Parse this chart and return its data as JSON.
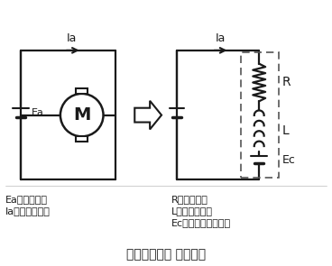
{
  "title": "有刷直流电机 等效电路",
  "bg_color": "#ffffff",
  "line_color": "#1a1a1a",
  "labels": {
    "Ia_left": "Ia",
    "Ia_right": "Ia",
    "R": "R",
    "L": "L",
    "Ec": "Ec",
    "Ea_label": "Ea",
    "M_label": "M",
    "legend1": "Ea：电源电压",
    "legend2": "Ia：电机的电流",
    "legend3": "R：电枢电阻",
    "legend4": "L：线圈的电感",
    "legend5": "Ec：电机的感应电压"
  }
}
